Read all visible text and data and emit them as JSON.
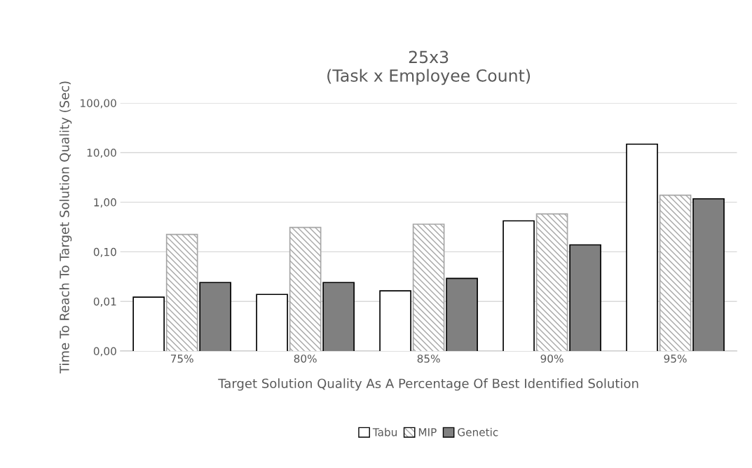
{
  "chart_data": {
    "type": "bar",
    "title": "25x3\n(Task x Employee Count)",
    "xlabel": "Target Solution Quality As A Percentage Of Best Identified Solution",
    "ylabel": "Time To Reach To Target Solution Quality (Sec)",
    "categories": [
      "75%",
      "80%",
      "85%",
      "90%",
      "95%"
    ],
    "series": [
      {
        "name": "Tabu",
        "color": "#ffffff",
        "values": [
          0.0122,
          0.0138,
          0.0163,
          0.42,
          14.8
        ]
      },
      {
        "name": "MIP",
        "color": "#a6a6a6",
        "values": [
          0.224,
          0.31,
          0.36,
          0.58,
          1.38
        ]
      },
      {
        "name": "Genetic",
        "color": "#808080",
        "values": [
          0.024,
          0.024,
          0.029,
          0.138,
          1.17
        ]
      }
    ],
    "log": "y",
    "ylim": [
      0.001,
      100
    ],
    "yticks": [
      {
        "value": 0.001,
        "label": "0,00"
      },
      {
        "value": 0.01,
        "label": "0,01"
      },
      {
        "value": 0.1,
        "label": "0,10"
      },
      {
        "value": 1,
        "label": "1,00"
      },
      {
        "value": 10,
        "label": "10,00"
      },
      {
        "value": 100,
        "label": "100,00"
      }
    ],
    "grid": "y",
    "legend": "bottom"
  }
}
